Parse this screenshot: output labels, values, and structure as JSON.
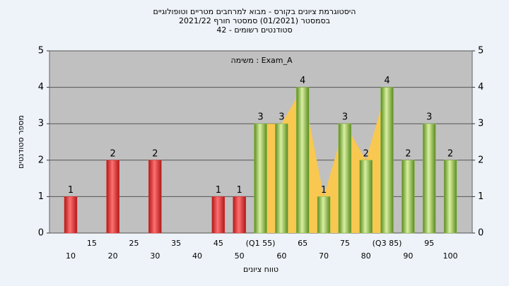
{
  "chart_data": {
    "type": "bar",
    "title": "היסטוגרמת ציונים בקורס - מבוא למרחבים מטריים וטופולוגיים",
    "subtitle": "בסמסטר  (01/2021)  סמסטר חורף 2021/22",
    "subtitle2": "סטודנטים רשומים - 42",
    "annotation": "משימה : Exam_A",
    "xlabel": "טווח ציונים",
    "ylabel": "מספר סטודנטים",
    "categories": [
      "10",
      "15",
      "20",
      "25",
      "30",
      "35",
      "40",
      "45",
      "50",
      "(Q1 55)",
      "60",
      "65",
      "70",
      "75",
      "80",
      "(Q3 85)",
      "90",
      "95",
      "100"
    ],
    "values": [
      1,
      0,
      2,
      0,
      2,
      0,
      0,
      1,
      1,
      3,
      3,
      4,
      1,
      3,
      2,
      4,
      2,
      3,
      2
    ],
    "colors": {
      "low": "#e03030",
      "high": "#8cc040",
      "quartile_area": "#f8c850"
    },
    "ylim": [
      0,
      5
    ],
    "yticks": [
      0,
      1,
      2,
      3,
      4,
      5
    ],
    "grid": true
  }
}
